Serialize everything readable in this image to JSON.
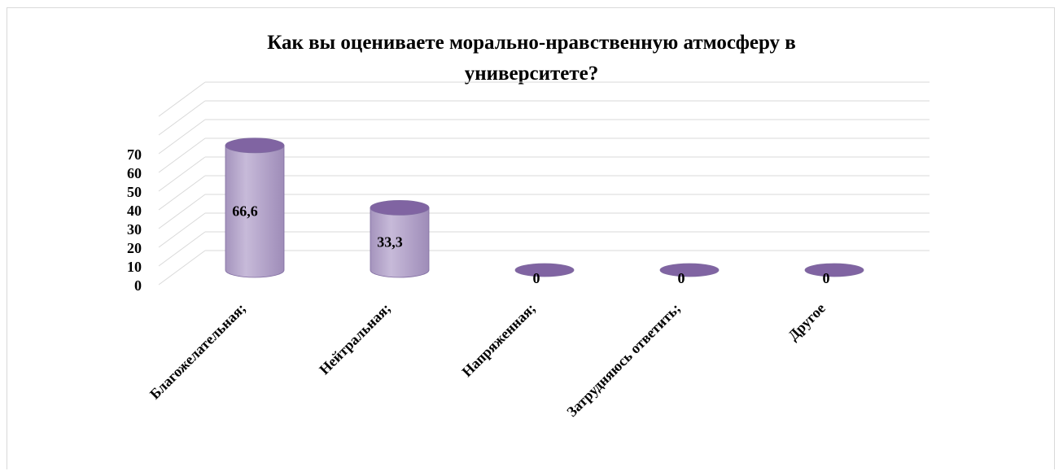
{
  "chart_data": {
    "type": "bar",
    "title": "Как вы оцениваете  морально-нравственную  атмосферу  в университете?",
    "title_lines": [
      "Как вы оцениваете  морально-нравственную  атмосферу  в",
      "университете?"
    ],
    "categories": [
      "Благожелательная;",
      "Нейтральная;",
      "Напряженная;",
      "Затрудняюсь ответить;",
      "Другое"
    ],
    "values": [
      66.6,
      33.3,
      0,
      0,
      0
    ],
    "data_labels": [
      "66,6",
      "33,3",
      "0",
      "0",
      "0"
    ],
    "y_ticks": [
      "0",
      "10",
      "20",
      "30",
      "40",
      "50",
      "60",
      "70"
    ],
    "ylim": [
      0,
      90
    ],
    "grid": true,
    "legend": "none",
    "xlabel": "",
    "ylabel": "",
    "colors": {
      "bar_body": "#b3a2c7",
      "bar_top": "#8064a2",
      "bar_edge": "#7f6ba0",
      "grid": "#d9d9d9",
      "text": "#000000"
    }
  }
}
